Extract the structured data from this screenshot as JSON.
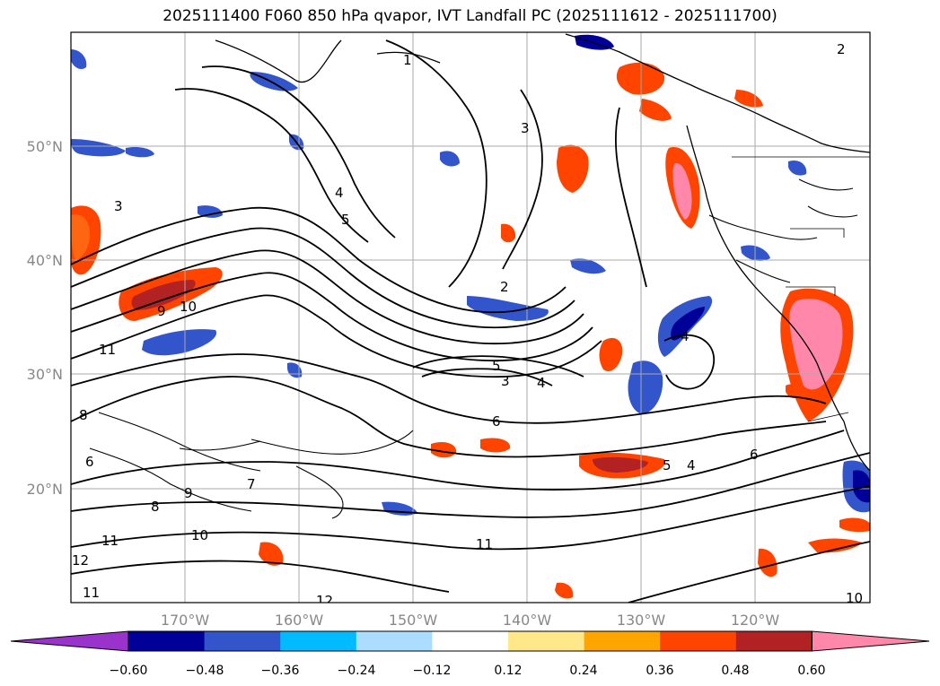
{
  "title": "2025111400 F060 850 hPa qvapor, IVT Landfall PC (2025111612 - 2025111700)",
  "axes": {
    "longitude_labels": [
      "170°W",
      "160°W",
      "150°W",
      "140°W",
      "130°W",
      "120°W"
    ],
    "latitude_labels": [
      "50°N",
      "40°N",
      "30°N",
      "20°N"
    ]
  },
  "colorbar": {
    "tick_labels": [
      "−0.60",
      "−0.48",
      "−0.36",
      "−0.24",
      "−0.12",
      "0.12",
      "0.24",
      "0.36",
      "0.48",
      "0.60"
    ],
    "colors": [
      "#9933cc",
      "#000099",
      "#3355cc",
      "#00bbff",
      "#aaddff",
      "#ffffff",
      "#ffe88a",
      "#ffa500",
      "#ff4400",
      "#b22222",
      "#ff88aa"
    ]
  },
  "contour_labels": [
    {
      "text": "1",
      "id": "c1"
    },
    {
      "text": "2",
      "id": "c2"
    },
    {
      "text": "3",
      "id": "c3"
    },
    {
      "text": "4",
      "id": "c4"
    },
    {
      "text": "5",
      "id": "c5"
    },
    {
      "text": "3",
      "id": "c6"
    },
    {
      "text": "4",
      "id": "c7"
    },
    {
      "text": "5",
      "id": "c8"
    },
    {
      "text": "6",
      "id": "c9"
    },
    {
      "text": "3",
      "id": "c10"
    },
    {
      "text": "9",
      "id": "c11"
    },
    {
      "text": "10",
      "id": "c12"
    },
    {
      "text": "11",
      "id": "c13"
    },
    {
      "text": "8",
      "id": "c14"
    },
    {
      "text": "7",
      "id": "c15"
    },
    {
      "text": "6",
      "id": "c16"
    },
    {
      "text": "9",
      "id": "c17"
    },
    {
      "text": "8",
      "id": "c18"
    },
    {
      "text": "10",
      "id": "c19"
    },
    {
      "text": "11",
      "id": "c20"
    },
    {
      "text": "12",
      "id": "c21"
    },
    {
      "text": "12",
      "id": "c22"
    },
    {
      "text": "11",
      "id": "c23"
    },
    {
      "text": "11",
      "id": "c24"
    },
    {
      "text": "4",
      "id": "c25"
    },
    {
      "text": "5",
      "id": "c26"
    },
    {
      "text": "6",
      "id": "c27"
    },
    {
      "text": "10",
      "id": "c28"
    },
    {
      "text": "2",
      "id": "c29"
    },
    {
      "text": "4",
      "id": "c30"
    }
  ]
}
